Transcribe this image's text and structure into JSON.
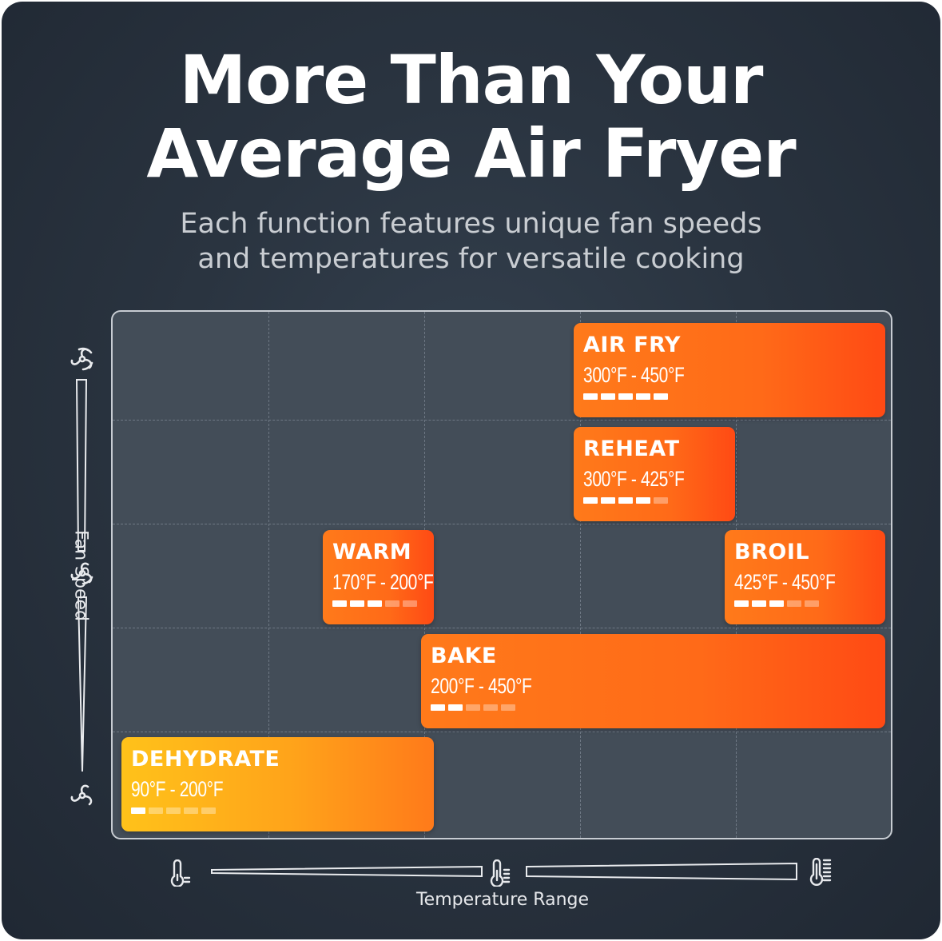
{
  "header": {
    "title_line1": "More Than Your",
    "title_line2": "Average Air Fryer",
    "subtitle_line1": "Each function features unique fan speeds",
    "subtitle_line2": "and temperatures for versatile cooking"
  },
  "axes": {
    "y_label": "Fan Speed",
    "x_label": "Temperature Range",
    "y_icons": [
      "fan-high-icon",
      "fan-medium-icon",
      "fan-low-icon"
    ],
    "x_icons": [
      "thermometer-low-icon",
      "thermometer-medium-icon",
      "thermometer-high-icon"
    ]
  },
  "colors": {
    "background": "#2a3440",
    "grid": "#434d58",
    "orange": "#ff7a1a",
    "red_orange": "#ff4a14",
    "yellow": "#ffc21a"
  },
  "chart_data": {
    "type": "bar",
    "orientation": "horizontal-range",
    "xlabel": "Temperature Range",
    "ylabel": "Fan Speed",
    "fan_speed_max": 5,
    "rows": [
      {
        "name": "AIR FRY",
        "range_label": "300°F - 450°F",
        "temp_min": 300,
        "temp_max": 450,
        "fan_speed": 5,
        "row": 0
      },
      {
        "name": "REHEAT",
        "range_label": "300°F - 425°F",
        "temp_min": 300,
        "temp_max": 425,
        "fan_speed": 4,
        "row": 1
      },
      {
        "name": "WARM",
        "range_label": "170°F - 200°F",
        "temp_min": 170,
        "temp_max": 200,
        "fan_speed": 3,
        "row": 2
      },
      {
        "name": "BROIL",
        "range_label": "425°F - 450°F",
        "temp_min": 425,
        "temp_max": 450,
        "fan_speed": 3,
        "row": 2
      },
      {
        "name": "BAKE",
        "range_label": "200°F - 450°F",
        "temp_min": 200,
        "temp_max": 450,
        "fan_speed": 2,
        "row": 3
      },
      {
        "name": "DEHYDRATE",
        "range_label": "90°F - 200°F",
        "temp_min": 90,
        "temp_max": 200,
        "fan_speed": 1,
        "row": 4
      }
    ]
  }
}
